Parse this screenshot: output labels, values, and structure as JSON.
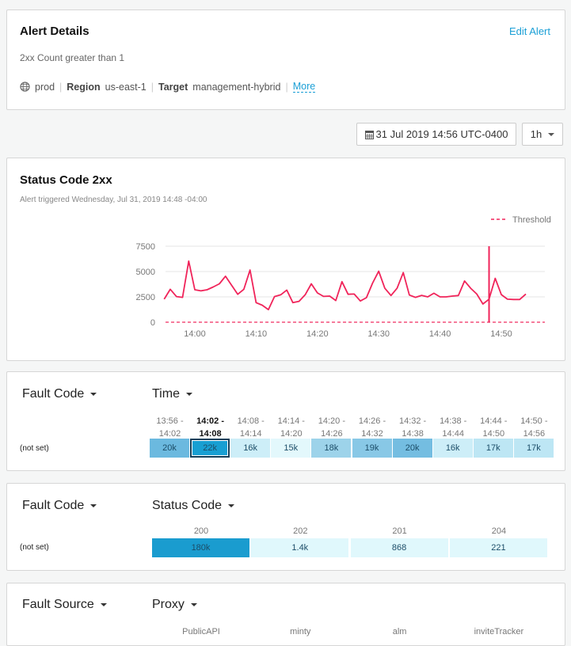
{
  "alert": {
    "title": "Alert Details",
    "edit_label": "Edit Alert",
    "condition": "2xx Count greater than 1",
    "env_icon": "globe-icon",
    "env": "prod",
    "region_label": "Region",
    "region": "us-east-1",
    "target_label": "Target",
    "target": "management-hybrid",
    "more_label": "More"
  },
  "toolbar": {
    "date_icon": "calendar-icon",
    "date": "31 Jul 2019 14:56 UTC-0400",
    "range": "1h"
  },
  "chart_card": {
    "title": "Status Code 2xx",
    "subtitle": "Alert triggered Wednesday, Jul 31, 2019 14:48 -04:00"
  },
  "chart_data": {
    "type": "line",
    "title": "Status Code 2xx",
    "ylim": [
      0,
      7500
    ],
    "yticks": [
      "0",
      "2500",
      "5000",
      "7500"
    ],
    "xticks": [
      "14:00",
      "14:10",
      "14:20",
      "14:30",
      "14:40",
      "14:50"
    ],
    "grid": true,
    "legend": "top-right",
    "legend_entries": [
      "Threshold"
    ],
    "threshold": 1,
    "marker_time": "14:48",
    "line_color": "#f0245a",
    "start_time": "13:55",
    "interval_minutes": 1,
    "values": [
      2270,
      3250,
      2530,
      2450,
      6030,
      3200,
      3090,
      3200,
      3480,
      3790,
      4540,
      3660,
      2760,
      3250,
      5150,
      1930,
      1680,
      1240,
      2530,
      2700,
      3170,
      1930,
      2060,
      2700,
      3790,
      2890,
      2550,
      2580,
      2140,
      4000,
      2760,
      2780,
      2090,
      2420,
      3870,
      5030,
      3350,
      2630,
      3350,
      4900,
      2680,
      2450,
      2650,
      2500,
      2860,
      2500,
      2500,
      2580,
      2630,
      4070,
      3350,
      2780,
      1800,
      2270,
      4330,
      2730,
      2270,
      2240,
      2240,
      2780
    ]
  },
  "time_table": {
    "row_dim": "Fault Code",
    "col_dim": "Time",
    "row_label": "(not set)",
    "columns": [
      {
        "from": "13:56 -",
        "to": "14:02",
        "value": "20k",
        "color": "#6bb9df"
      },
      {
        "from": "14:02 -",
        "to": "14:08",
        "value": "22k",
        "color": "#189fd2",
        "selected": true
      },
      {
        "from": "14:08 -",
        "to": "14:14",
        "value": "16k",
        "color": "#cdeef8"
      },
      {
        "from": "14:14 -",
        "to": "14:20",
        "value": "15k",
        "color": "#e3f8fc"
      },
      {
        "from": "14:20 -",
        "to": "14:26",
        "value": "18k",
        "color": "#9dd3ea"
      },
      {
        "from": "14:26 -",
        "to": "14:32",
        "value": "19k",
        "color": "#88c8e6"
      },
      {
        "from": "14:32 -",
        "to": "14:38",
        "value": "20k",
        "color": "#74bde1"
      },
      {
        "from": "14:38 -",
        "to": "14:44",
        "value": "16k",
        "color": "#cdeef8"
      },
      {
        "from": "14:44 -",
        "to": "14:50",
        "value": "17k",
        "color": "#bde6f4"
      },
      {
        "from": "14:50 -",
        "to": "14:56",
        "value": "17k",
        "color": "#bde6f4"
      }
    ]
  },
  "status_table": {
    "row_dim": "Fault Code",
    "col_dim": "Status Code",
    "row_label": "(not set)",
    "columns": [
      {
        "label": "200",
        "value": "180k",
        "color": "#1a9ccf"
      },
      {
        "label": "202",
        "value": "1.4k",
        "color": "#e0f8fc"
      },
      {
        "label": "201",
        "value": "868",
        "color": "#e0f8fc"
      },
      {
        "label": "204",
        "value": "221",
        "color": "#e0f8fc"
      }
    ]
  },
  "proxy_table": {
    "row_dim": "Fault Source",
    "col_dim": "Proxy",
    "columns": [
      "PublicAPI",
      "minty",
      "alm",
      "inviteTracker"
    ]
  }
}
